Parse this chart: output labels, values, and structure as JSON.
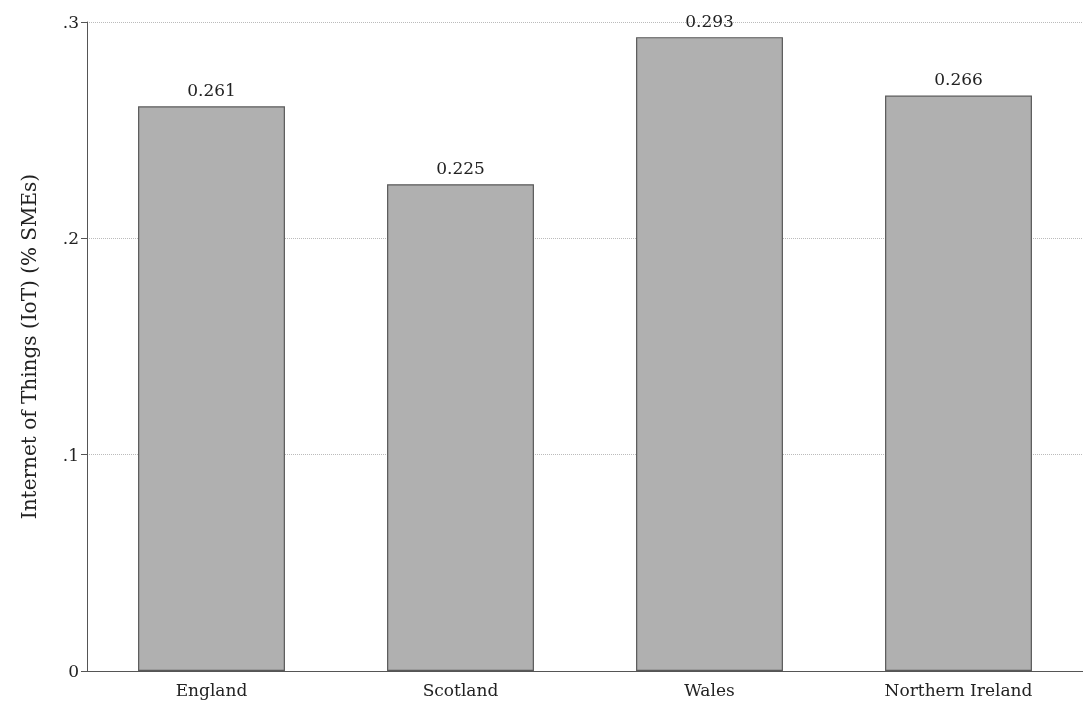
{
  "chart_data": {
    "type": "bar",
    "ylabel": "Internet of Things (IoT) (% SMEs)",
    "categories": [
      "England",
      "Scotland",
      "Wales",
      "Northern Ireland"
    ],
    "values": [
      0.261,
      0.225,
      0.293,
      0.266
    ],
    "color": "#b0b0b0",
    "ylim": [
      0,
      0.3
    ],
    "yticks": [
      0,
      {
        "value": 0.1,
        "label": ".1"
      },
      {
        "value": 0.2,
        "label": ".2"
      },
      {
        "value": 0.3,
        "label": ".3"
      }
    ],
    "grid": "y",
    "data_labels": true
  }
}
